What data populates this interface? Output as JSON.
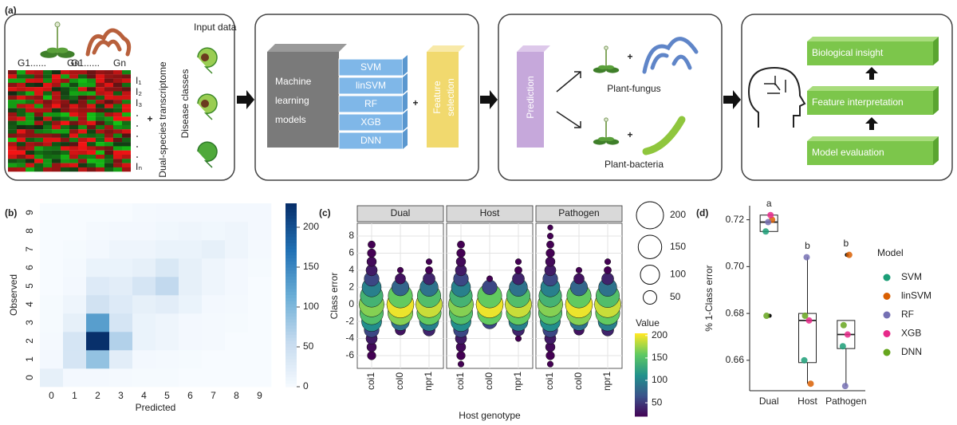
{
  "labels": {
    "a": "(a)",
    "b": "(b)",
    "c": "(c)",
    "d": "(d)"
  },
  "diagram": {
    "input_title": "Input data",
    "gene_labels": [
      "G1......",
      "Gn",
      "G1......",
      "Gn"
    ],
    "row_labels": [
      "I₁",
      "I₂",
      "I₃",
      "Iₙ"
    ],
    "transcriptome": "Dual-species transcriptome",
    "disease_classes": "Disease classes",
    "plus": "+",
    "ml_title": [
      "Machine",
      "learning",
      "models"
    ],
    "models": [
      "SVM",
      "linSVM",
      "RF",
      "XGB",
      "DNN"
    ],
    "feature_selection": [
      "Feature",
      "selection"
    ],
    "prediction": "Prediction",
    "plant_fungus": "Plant-fungus",
    "plant_bacteria": "Plant-bacteria",
    "insights": [
      "Biological insight",
      "Feature interpretation",
      "Model evaluation"
    ]
  },
  "chart_data": [
    {
      "type": "heatmap",
      "x_label": "Predicted",
      "y_label": "Observed",
      "xticks": [
        0,
        1,
        2,
        3,
        4,
        5,
        6,
        7,
        8,
        9
      ],
      "yticks": [
        0,
        1,
        2,
        3,
        4,
        5,
        6,
        7,
        8,
        9
      ],
      "xlim": [
        -0.5,
        9.5
      ],
      "ylim": [
        -0.5,
        9.5
      ],
      "values": [
        [
          20,
          5,
          5,
          3,
          2,
          2,
          0,
          0,
          0,
          0
        ],
        [
          5,
          40,
          90,
          25,
          5,
          3,
          2,
          0,
          0,
          0
        ],
        [
          3,
          40,
          230,
          70,
          15,
          10,
          5,
          3,
          0,
          0
        ],
        [
          2,
          20,
          130,
          40,
          15,
          10,
          5,
          3,
          2,
          0
        ],
        [
          2,
          10,
          45,
          30,
          20,
          25,
          15,
          5,
          3,
          0
        ],
        [
          0,
          5,
          30,
          25,
          40,
          60,
          20,
          10,
          5,
          0
        ],
        [
          0,
          3,
          15,
          15,
          20,
          35,
          20,
          10,
          5,
          2
        ],
        [
          0,
          2,
          5,
          10,
          10,
          15,
          15,
          20,
          10,
          3
        ],
        [
          0,
          0,
          3,
          5,
          5,
          8,
          10,
          8,
          10,
          5
        ],
        [
          0,
          0,
          0,
          0,
          3,
          5,
          5,
          5,
          5,
          5
        ]
      ],
      "colorbar_lim": [
        0,
        230
      ],
      "colorbar_ticks": [
        0,
        50,
        100,
        150,
        200
      ],
      "colormap": [
        "#f7fbff",
        "#c6dbef",
        "#6baed6",
        "#2171b5",
        "#08306b"
      ]
    },
    {
      "type": "bubble",
      "facets": [
        "Dual",
        "Host",
        "Pathogen"
      ],
      "categories": [
        "coi1",
        "col0",
        "npr1"
      ],
      "x_label": "Host genotype",
      "y_label": "Class error",
      "ylim": [
        -7.5,
        9.5
      ],
      "yticks": [
        -6,
        -4,
        -2,
        0,
        2,
        4,
        6,
        8
      ],
      "grid": true,
      "panels": [
        [
          {
            "y": [
              -6,
              -5,
              -4,
              -3,
              -2,
              -1,
              0,
              1,
              2,
              3,
              4,
              5,
              6,
              7
            ],
            "size": [
              20,
              25,
              35,
              60,
              110,
              150,
              170,
              140,
              100,
              60,
              35,
              25,
              20,
              15
            ]
          },
          {
            "y": [
              -3,
              -2,
              -1,
              0,
              1,
              2,
              3,
              4
            ],
            "size": [
              30,
              90,
              170,
              200,
              160,
              80,
              30,
              10
            ]
          },
          {
            "y": [
              -3,
              -2,
              -1,
              0,
              1,
              2,
              3,
              4,
              5
            ],
            "size": [
              40,
              100,
              160,
              190,
              150,
              90,
              40,
              15,
              10
            ]
          }
        ],
        [
          {
            "y": [
              -7,
              -6,
              -5,
              -4,
              -3,
              -2,
              -1,
              0,
              1,
              2,
              3,
              4,
              5,
              6,
              7
            ],
            "size": [
              10,
              20,
              25,
              35,
              60,
              110,
              150,
              170,
              140,
              100,
              60,
              35,
              25,
              20,
              15
            ]
          },
          {
            "y": [
              -2,
              -1,
              0,
              1,
              2,
              3
            ],
            "size": [
              60,
              160,
              200,
              160,
              60,
              10
            ]
          },
          {
            "y": [
              -4,
              -3,
              -2,
              -1,
              0,
              1,
              2,
              3,
              4,
              5
            ],
            "size": [
              10,
              40,
              100,
              160,
              190,
              150,
              90,
              40,
              15,
              10
            ]
          }
        ],
        [
          {
            "y": [
              -7,
              -6,
              -5,
              -4,
              -3,
              -2,
              -1,
              0,
              1,
              2,
              3,
              4,
              5,
              6,
              7,
              8,
              9
            ],
            "size": [
              10,
              20,
              25,
              35,
              60,
              110,
              150,
              170,
              140,
              100,
              60,
              35,
              25,
              20,
              15,
              10,
              8
            ]
          },
          {
            "y": [
              -3,
              -2,
              -1,
              0,
              1,
              2,
              3,
              4
            ],
            "size": [
              30,
              90,
              170,
              200,
              160,
              80,
              30,
              10
            ]
          },
          {
            "y": [
              -3,
              -2,
              -1,
              0,
              1,
              2,
              3,
              4,
              5
            ],
            "size": [
              40,
              100,
              160,
              190,
              150,
              90,
              40,
              15,
              10
            ]
          }
        ]
      ],
      "size_legend": [
        200,
        150,
        100,
        50
      ],
      "color_label": "Value",
      "color_lim": [
        20,
        205
      ],
      "color_ticks": [
        50,
        100,
        150,
        200
      ],
      "colormap": [
        "#440154",
        "#3b528b",
        "#21918c",
        "#5ec962",
        "#fde725"
      ]
    },
    {
      "type": "box",
      "categories": [
        "Dual",
        "Host",
        "Pathogen"
      ],
      "y_label": "% 1-Class error",
      "ylim": [
        0.647,
        0.726
      ],
      "yticks": [
        0.66,
        0.68,
        {
          "value": 0.7,
          "label": "0.70"
        },
        0.72
      ],
      "letters": [
        "a",
        "b",
        "b"
      ],
      "legend_title": "Model",
      "series": [
        {
          "name": "SVM",
          "color": "#1b9e77",
          "values": [
            0.715,
            0.66,
            0.666
          ]
        },
        {
          "name": "linSVM",
          "color": "#d95f02",
          "values": [
            0.72,
            0.65,
            0.705
          ]
        },
        {
          "name": "RF",
          "color": "#7570b3",
          "values": [
            0.719,
            0.704,
            0.649
          ]
        },
        {
          "name": "XGB",
          "color": "#e7298a",
          "values": [
            0.722,
            0.677,
            0.671
          ]
        },
        {
          "name": "DNN",
          "color": "#66a61e",
          "values": [
            0.679,
            0.679,
            0.675
          ]
        }
      ],
      "boxes": [
        {
          "low": 0.715,
          "q1": 0.715,
          "median": 0.719,
          "q3": 0.722,
          "high": 0.722,
          "outliers": [
            0.679
          ]
        },
        {
          "low": 0.65,
          "q1": 0.659,
          "median": 0.677,
          "q3": 0.68,
          "high": 0.704,
          "outliers": []
        },
        {
          "low": 0.649,
          "q1": 0.665,
          "median": 0.671,
          "q3": 0.677,
          "high": 0.677,
          "outliers": [
            0.705
          ]
        }
      ]
    }
  ]
}
